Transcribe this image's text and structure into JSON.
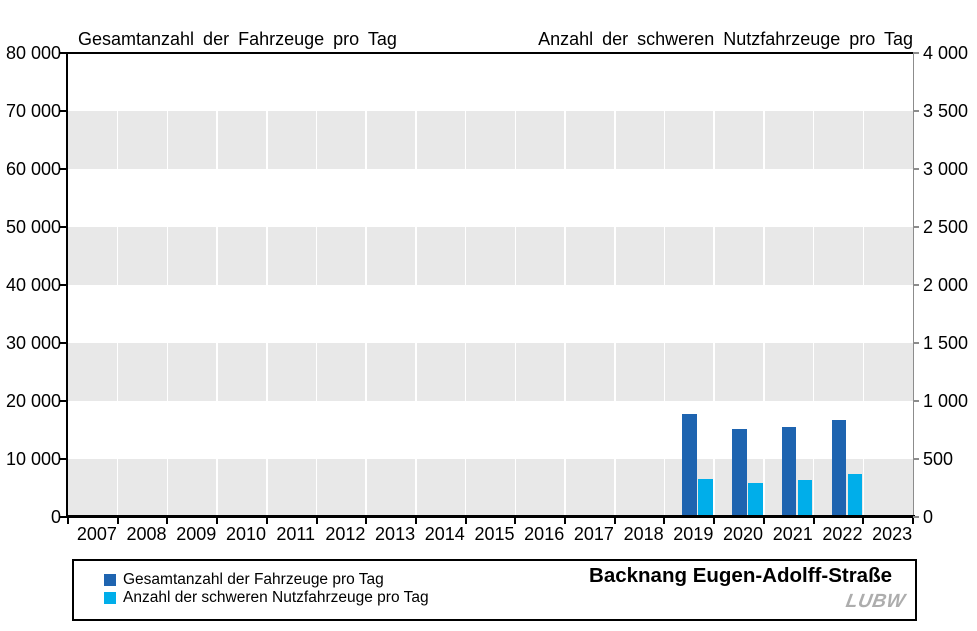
{
  "chart_data": {
    "type": "bar",
    "title": "Backnang Eugen-Adolff-Straße",
    "categories": [
      "2007",
      "2008",
      "2009",
      "2010",
      "2011",
      "2012",
      "2013",
      "2014",
      "2015",
      "2016",
      "2017",
      "2018",
      "2019",
      "2020",
      "2021",
      "2022",
      "2023"
    ],
    "series": [
      {
        "name": "Gesamtanzahl der Fahrzeuge pro Tag",
        "axis": "left",
        "color": "#1E64B0",
        "values": [
          null,
          null,
          null,
          null,
          null,
          null,
          null,
          null,
          null,
          null,
          null,
          null,
          17350,
          14750,
          15100,
          16450,
          null
        ]
      },
      {
        "name": "Anzahl der schweren Nutzfahrzeuge pro Tag",
        "axis": "right",
        "color": "#00AEEA",
        "values": [
          null,
          null,
          null,
          null,
          null,
          null,
          null,
          null,
          null,
          null,
          null,
          null,
          310,
          280,
          300,
          350,
          null
        ]
      }
    ],
    "left_axis": {
      "title": "Gesamtanzahl der Fahrzeuge pro Tag",
      "min": 0,
      "max": 80000,
      "step": 10000,
      "tick_labels": [
        "0",
        "10 000",
        "20 000",
        "30 000",
        "40 000",
        "50 000",
        "60 000",
        "70 000",
        "80 000"
      ]
    },
    "right_axis": {
      "title": "Anzahl der schweren Nutzfahrzeuge pro Tag",
      "min": 0,
      "max": 4000,
      "step": 500,
      "tick_labels": [
        "0",
        "500",
        "1 000",
        "1 500",
        "2 000",
        "2 500",
        "3 000",
        "3 500",
        "4 000"
      ]
    },
    "grid": {
      "band_color": "#E8E8E8",
      "band_rows_shaded": "alternating-from-bottom",
      "vertical_separator_color": "#FFFFFF"
    },
    "legend_position": "bottom-left-box"
  },
  "branding": {
    "logo_text": "LUBW",
    "logo_color": "#ADADAD"
  },
  "colors": {
    "axis_primary": "#000000",
    "axis_secondary": "#8C8C8C",
    "background": "#FFFFFF"
  }
}
